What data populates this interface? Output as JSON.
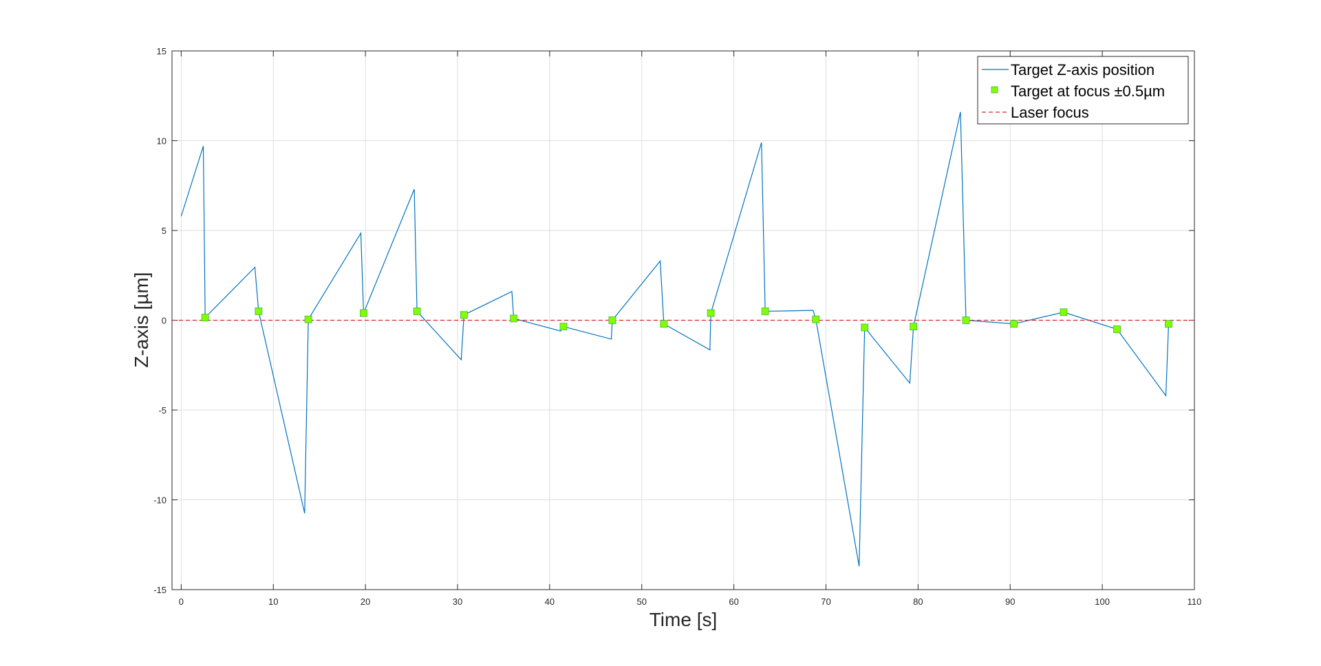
{
  "chart_data": {
    "type": "line",
    "xlabel": "Time [s]",
    "ylabel": "Z-axis [µm]",
    "xlim": [
      -1,
      110
    ],
    "ylim": [
      -15,
      15
    ],
    "xticks": [
      0,
      10,
      20,
      30,
      40,
      50,
      60,
      70,
      80,
      90,
      100,
      110
    ],
    "yticks": [
      -15,
      -10,
      -5,
      0,
      5,
      10,
      15
    ],
    "grid": true,
    "legend_position": "top-right",
    "series": [
      {
        "name": "Target Z-axis position",
        "kind": "line",
        "color": "#0072bd",
        "x": [
          0,
          2.4,
          2.6,
          8.0,
          8.4,
          13.4,
          13.8,
          19.5,
          19.8,
          25.3,
          25.6,
          30.4,
          30.7,
          35.9,
          36.1,
          41.2,
          41.5,
          46.7,
          46.8,
          52.0,
          52.4,
          57.4,
          57.5,
          63.0,
          63.4,
          68.6,
          68.9,
          73.6,
          74.2,
          79.1,
          79.5,
          84.6,
          85.2,
          90.4,
          95.8,
          101.6,
          106.9,
          107.2
        ],
        "y": [
          5.8,
          9.7,
          0.15,
          2.95,
          0.5,
          -10.75,
          0.05,
          4.85,
          0.4,
          7.3,
          0.5,
          -2.2,
          0.3,
          1.6,
          0.1,
          -0.6,
          -0.35,
          -1.05,
          0,
          3.3,
          -0.2,
          -1.65,
          0.4,
          9.9,
          0.5,
          0.55,
          0.05,
          -13.7,
          -0.4,
          -3.5,
          -0.35,
          11.6,
          0,
          -0.2,
          0.45,
          -0.5,
          -4.2,
          -0.2
        ]
      },
      {
        "name": "Target at focus ±0.5µm",
        "kind": "marker",
        "color": "#7fff00",
        "x": [
          2.6,
          8.4,
          13.8,
          19.8,
          25.6,
          30.7,
          36.1,
          41.5,
          46.8,
          52.4,
          57.5,
          63.4,
          68.9,
          74.2,
          79.5,
          85.2,
          90.4,
          95.8,
          101.6,
          107.2
        ],
        "y": [
          0.15,
          0.5,
          0.05,
          0.4,
          0.5,
          0.3,
          0.1,
          -0.35,
          0,
          -0.2,
          0.4,
          0.5,
          0.05,
          -0.4,
          -0.35,
          0,
          -0.2,
          0.45,
          -0.5,
          -0.2
        ]
      },
      {
        "name": "Laser focus",
        "kind": "hline",
        "color": "#d62728",
        "y": 0
      }
    ]
  }
}
